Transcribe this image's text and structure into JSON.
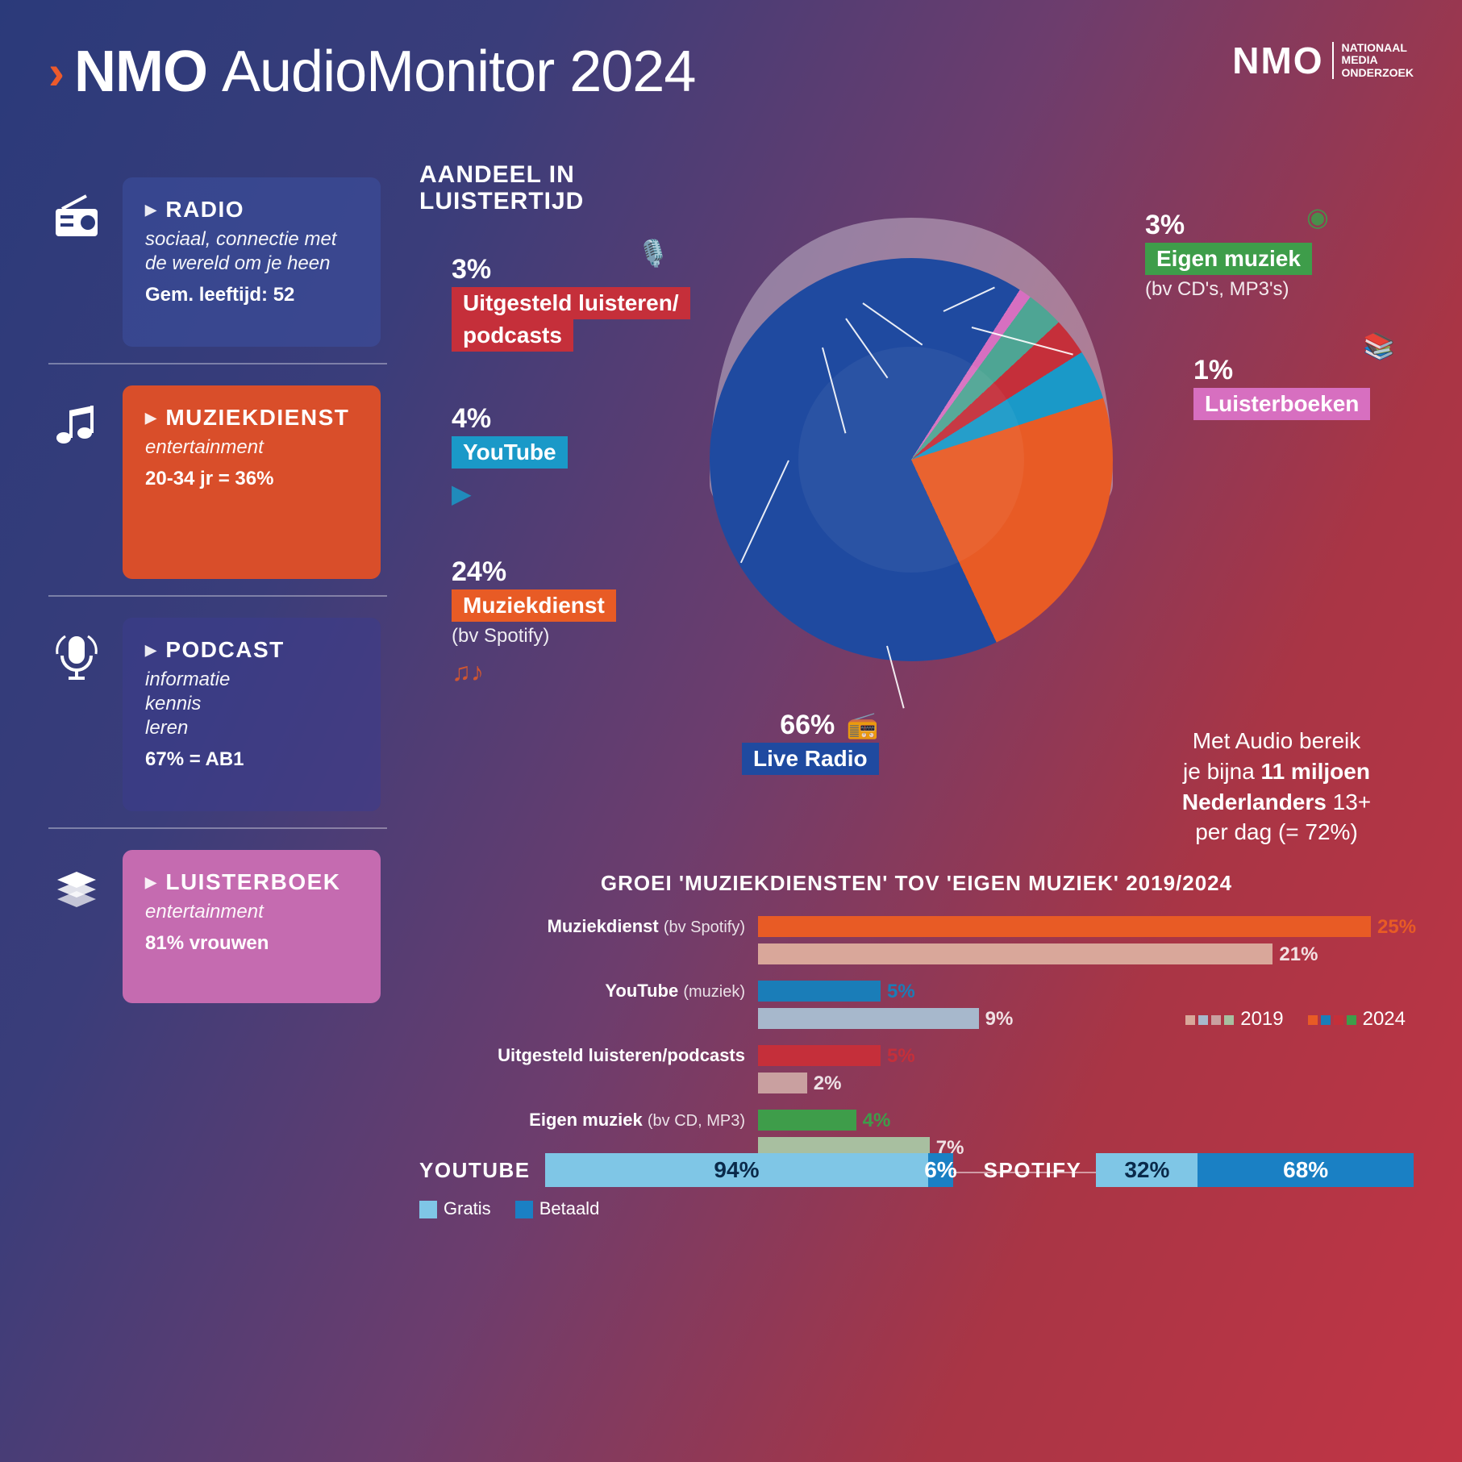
{
  "title_bold": "NMO",
  "title_rest": "AudioMonitor 2024",
  "logo": {
    "brand": "NMO",
    "sub1": "NATIONAAL",
    "sub2": "MEDIA",
    "sub3": "ONDERZOEK"
  },
  "sidebar": {
    "radio": {
      "title": "RADIO",
      "desc": "sociaal, connectie met de wereld om je heen",
      "stat": "Gem. leeftijd: 52"
    },
    "muziek": {
      "title": "MUZIEKDIENST",
      "desc": "entertainment",
      "stat": "20-34 jr = 36%"
    },
    "podcast": {
      "title": "PODCAST",
      "desc": "informatie\nkennis\nleren",
      "stat": "67% = AB1"
    },
    "luister": {
      "title": "LUISTERBOEK",
      "desc": "entertainment",
      "stat": "81% vrouwen"
    }
  },
  "pie": {
    "title_l1": "AANDEEL IN",
    "title_l2": "LUISTERTIJD",
    "slices": [
      {
        "name": "Live Radio",
        "pct": 66,
        "color": "#1f4aa0"
      },
      {
        "name": "Luisterboeken",
        "pct": 1,
        "color": "#d76fc0"
      },
      {
        "name": "Eigen muziek",
        "pct": 3,
        "color": "#4ea594"
      },
      {
        "name": "Uitgesteld luisteren/podcasts",
        "pct": 3,
        "color": "#c52f3a"
      },
      {
        "name": "YouTube",
        "pct": 4,
        "color": "#1a99c8"
      },
      {
        "name": "Muziekdienst",
        "pct": 24,
        "color": "#e85b25"
      }
    ],
    "labels": {
      "podcasts": {
        "pct": "3%",
        "name": "Uitgesteld luisteren/",
        "name2": "podcasts",
        "color": "#c52f3a"
      },
      "youtube": {
        "pct": "4%",
        "name": "YouTube",
        "color": "#1a99c8"
      },
      "muziek": {
        "pct": "24%",
        "name": "Muziekdienst",
        "sub": "(bv Spotify)",
        "color": "#e85b25"
      },
      "live": {
        "pct": "66%",
        "name": "Live Radio",
        "color": "#1f4aa0"
      },
      "eigen": {
        "pct": "3%",
        "name": "Eigen muziek",
        "sub": "(bv CD's, MP3's)",
        "color": "#3e9d4a"
      },
      "boek": {
        "pct": "1%",
        "name": "Luisterboeken",
        "color": "#d76fc0"
      }
    },
    "inner_color": "#203e86"
  },
  "reach": {
    "l1": "Met Audio bereik",
    "l2_a": "je bijna ",
    "l2_b": "11 miljoen",
    "l3_a": "Nederlanders ",
    "l3_b": "13+",
    "l4": "per dag (= 72%)"
  },
  "growth": {
    "title": "GROEI 'MUZIEKDIENSTEN' TOV 'EIGEN MUZIEK' 2019/2024",
    "max": 25,
    "rows": [
      {
        "label": "Muziekdienst",
        "sub": "(bv Spotify)",
        "v2024": 25,
        "v2019": 21,
        "c2024": "#e85b25",
        "c2019": "#d9a79a"
      },
      {
        "label": "YouTube",
        "sub": "(muziek)",
        "v2024": 5,
        "v2019": 9,
        "c2024": "#1a7db8",
        "c2019": "#a7b8cc"
      },
      {
        "label": "Uitgesteld luisteren/podcasts",
        "sub": "",
        "v2024": 5,
        "v2019": 2,
        "c2024": "#c52f3a",
        "c2019": "#c9a0a0"
      },
      {
        "label": "Eigen muziek",
        "sub": "(bv CD, MP3)",
        "v2024": 4,
        "v2019": 7,
        "c2024": "#3e9d4a",
        "c2019": "#a8bfa0"
      }
    ],
    "legend": {
      "y2019": "2019",
      "y2024": "2024"
    }
  },
  "paid": {
    "youtube": {
      "label": "YOUTUBE",
      "free": 94,
      "paid": 6
    },
    "spotify": {
      "label": "SPOTIFY",
      "free": 32,
      "paid": 68
    },
    "colors": {
      "free": "#7fc6e6",
      "paid": "#1a80c4"
    },
    "legend": {
      "free": "Gratis",
      "paid": "Betaald"
    }
  }
}
